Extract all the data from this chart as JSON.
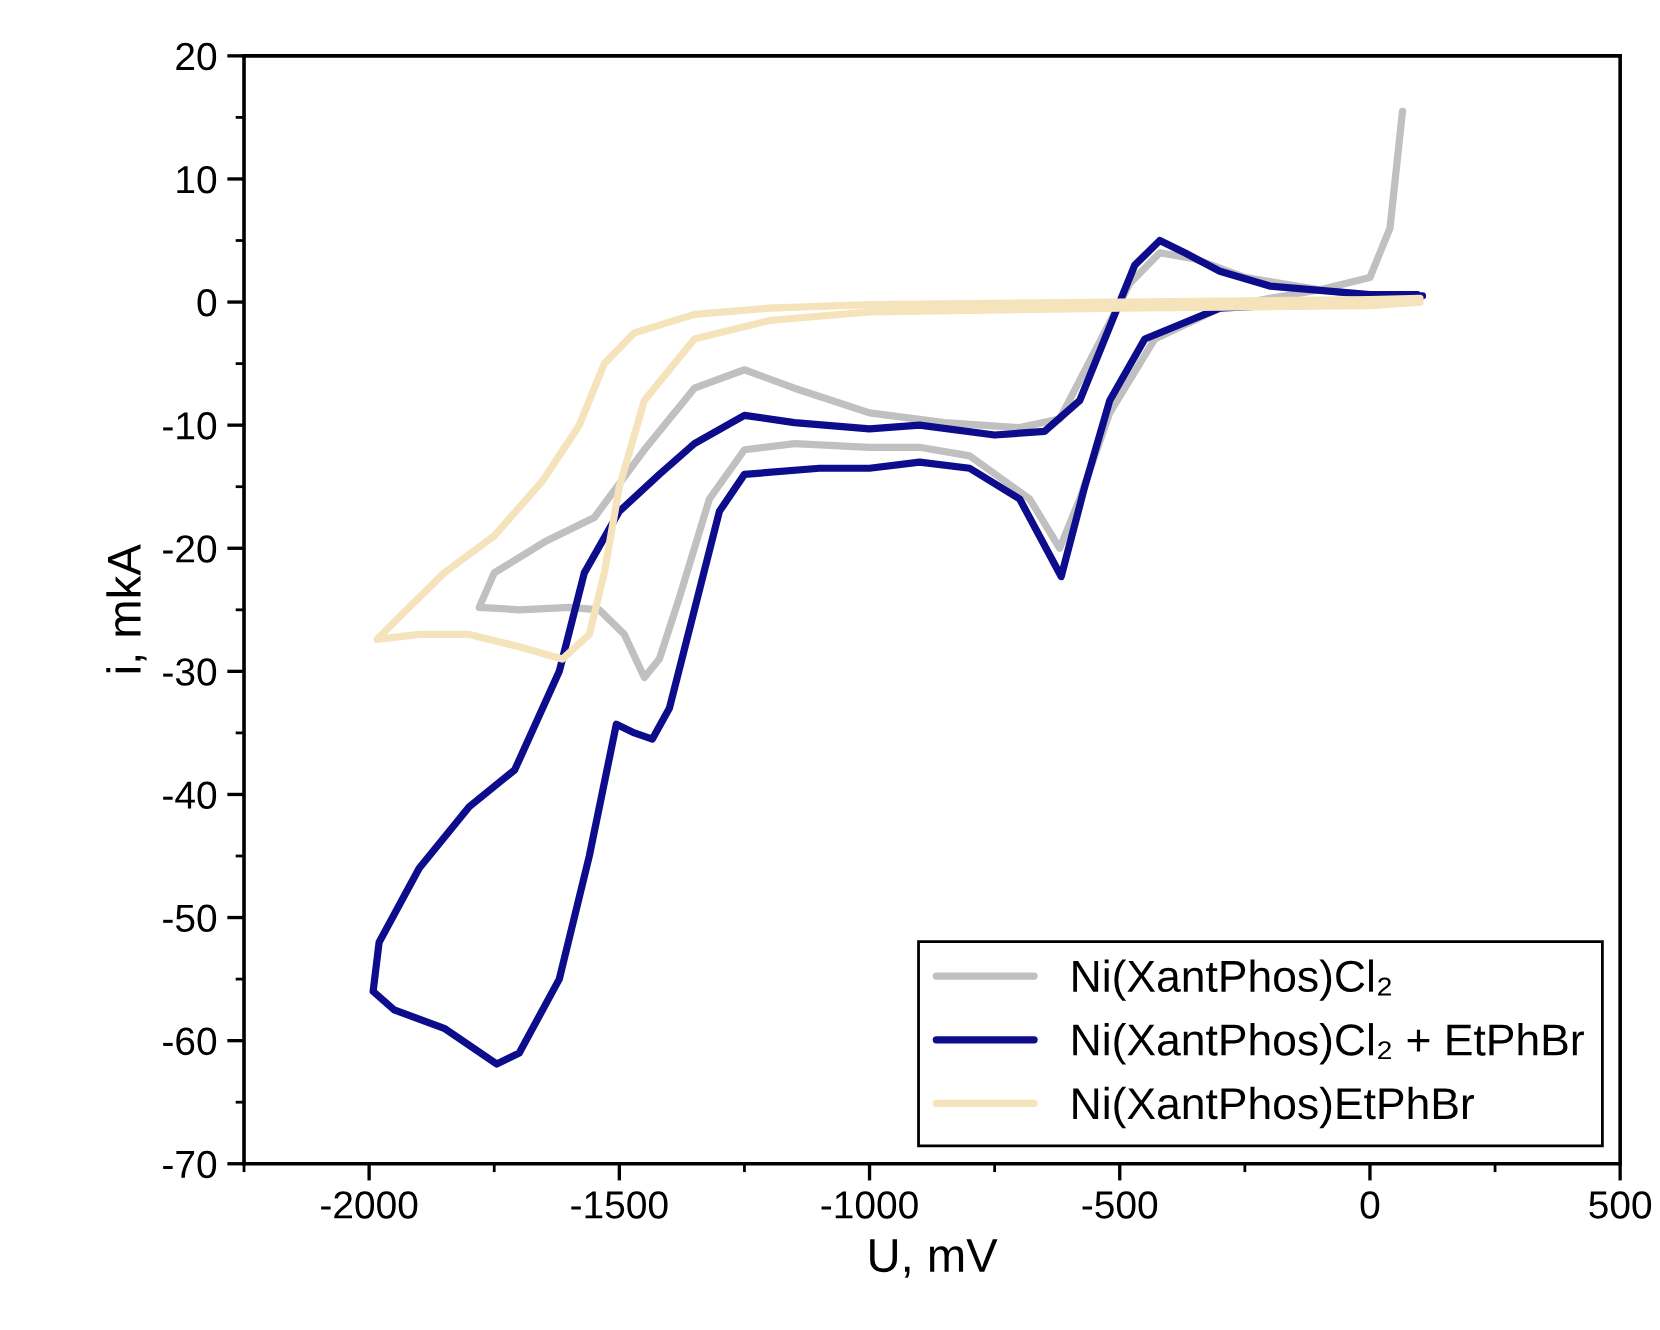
{
  "chart_data": {
    "type": "line",
    "xlabel": "U, mV",
    "ylabel": "i, mkA",
    "xlim": [
      -2250,
      500
    ],
    "xticks": [
      -2000,
      -1500,
      -1000,
      -500,
      0,
      500
    ],
    "ylim": [
      -70,
      20
    ],
    "yticks": [
      -70,
      -60,
      -50,
      -40,
      -30,
      -20,
      -10,
      0,
      10,
      20
    ],
    "grid": false,
    "legend": "bottom right",
    "marker": "none",
    "line_style": "solid",
    "series": [
      {
        "name": "Ni(XantPhos)Cl₂",
        "color": "#c0c0c0",
        "x": [
          65,
          40,
          0,
          -100,
          -200,
          -300,
          -430,
          -520,
          -580,
          -620,
          -680,
          -800,
          -900,
          -1000,
          -1150,
          -1250,
          -1320,
          -1380,
          -1420,
          -1450,
          -1490,
          -1540,
          -1600,
          -1700,
          -1780,
          -1750,
          -1650,
          -1550,
          -1450,
          -1350,
          -1250,
          -1150,
          -1000,
          -850,
          -700,
          -620,
          -550,
          -480,
          -420,
          -350,
          -250,
          -100,
          0,
          100
        ],
        "values": [
          15.5,
          6,
          2,
          1,
          0.3,
          -0.5,
          -3,
          -9,
          -16,
          -20,
          -16,
          -12.5,
          -11.8,
          -11.8,
          -11.5,
          -12,
          -16,
          -24,
          -29,
          -30.5,
          -27,
          -25,
          -24.8,
          -25,
          -24.8,
          -22,
          -19.5,
          -17.5,
          -12,
          -7,
          -5.5,
          -7,
          -9,
          -9.8,
          -10.2,
          -9.5,
          -4,
          1.5,
          4,
          3.5,
          2,
          1,
          0.5,
          0.3
        ]
      },
      {
        "name": "Ni(XantPhos)Cl₂ + EtPhBr",
        "color": "#0c0c8c",
        "x": [
          105,
          0,
          -200,
          -300,
          -450,
          -520,
          -570,
          -617,
          -700,
          -800,
          -900,
          -1000,
          -1100,
          -1250,
          -1300,
          -1350,
          -1400,
          -1434,
          -1470,
          -1506,
          -1560,
          -1620,
          -1700,
          -1745,
          -1850,
          -1950,
          -1992,
          -1980,
          -1900,
          -1800,
          -1709,
          -1620,
          -1570,
          -1500,
          -1420,
          -1350,
          -1250,
          -1150,
          -1000,
          -900,
          -750,
          -650,
          -580,
          -520,
          -470,
          -420,
          -370,
          -300,
          -200,
          0,
          95
        ],
        "values": [
          0.5,
          0.2,
          -0.3,
          -0.5,
          -3,
          -8,
          -15,
          -22.3,
          -16,
          -13.5,
          -13,
          -13.5,
          -13.5,
          -14,
          -17,
          -25,
          -33,
          -35.5,
          -35,
          -34.3,
          -45,
          -55,
          -61,
          -61.9,
          -59,
          -57.5,
          -56,
          -52,
          -46,
          -41,
          -38,
          -30,
          -22,
          -17,
          -14,
          -11.5,
          -9.2,
          -9.8,
          -10.3,
          -10,
          -10.8,
          -10.5,
          -8,
          -2,
          3,
          5,
          4,
          2.5,
          1.3,
          0.6,
          0.6
        ]
      },
      {
        "name": "Ni(XantPhos)EtPhBr",
        "color": "#f5e4bb",
        "x": [
          100,
          0,
          -500,
          -1000,
          -1200,
          -1350,
          -1450,
          -1500,
          -1530,
          -1560,
          -1614,
          -1700,
          -1800,
          -1900,
          -1984,
          -1950,
          -1850,
          -1750,
          -1653,
          -1580,
          -1530,
          -1470,
          -1350,
          -1200,
          -1000,
          -500,
          0,
          100
        ],
        "values": [
          0,
          -0.3,
          -0.5,
          -0.8,
          -1.5,
          -3,
          -8,
          -15,
          -22,
          -27,
          -29,
          -28,
          -27,
          -27,
          -27.4,
          -26,
          -22,
          -19,
          -14.5,
          -10,
          -5,
          -2.5,
          -1,
          -0.5,
          -0.2,
          0,
          0.2,
          0.3
        ]
      }
    ]
  }
}
